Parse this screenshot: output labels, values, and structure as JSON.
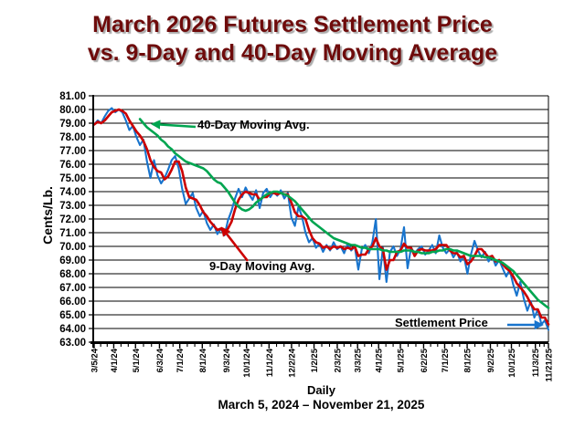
{
  "title": {
    "line1": "March 2026 Futures Settlement Price",
    "line2": "vs. 9-Day and 40-Day Moving Average",
    "color": "#6e0b0b"
  },
  "axes": {
    "y_label": "Cents/Lb.",
    "y_max": 81,
    "y_min": 63,
    "y_ticks": [
      "81.00",
      "80.00",
      "79.00",
      "78.00",
      "77.00",
      "76.00",
      "75.00",
      "74.00",
      "73.00",
      "72.00",
      "71.00",
      "70.00",
      "69.00",
      "68.00",
      "67.00",
      "66.00",
      "65.00",
      "64.00",
      "63.00"
    ],
    "x_label": "Daily",
    "x_sublabel": "March 5, 2024 – November 21, 2025",
    "x_ticks": [
      "3/5/24",
      "4/1/24",
      "5/1/24",
      "6/3/24",
      "7/1/24",
      "8/1/24",
      "9/3/24",
      "10/1/24",
      "11/1/24",
      "12/2/24",
      "1/2/25",
      "2/3/25",
      "3/3/25",
      "4/1/25",
      "5/1/25",
      "6/2/25",
      "7/1/25",
      "8/1/25",
      "9/2/25",
      "10/1/25",
      "11/3/25",
      "11/21/25"
    ]
  },
  "annotations": [
    {
      "id": "ma40",
      "text": "40-Day Moving Avg.",
      "color": "#00a550"
    },
    {
      "id": "ma9",
      "text": "9-Day Moving Avg.",
      "color": "#cc0000"
    },
    {
      "id": "settlement",
      "text": "Settlement Price",
      "color": "#1874cd"
    }
  ],
  "chart_data": {
    "type": "line",
    "title": "March 2026 Futures Settlement Price vs. 9-Day and 40-Day Moving Average",
    "xlabel": "Daily",
    "ylabel": "Cents/Lb.",
    "x_range": [
      "3/5/24",
      "11/21/25"
    ],
    "ylim": [
      63,
      81
    ],
    "grid": true,
    "legend": "in-plot text annotations with arrows",
    "series": [
      {
        "name": "Settlement Price",
        "id": "settlement",
        "color": "#1874cd",
        "values": [
          78.9,
          79.2,
          79.0,
          79.5,
          79.9,
          80.1,
          79.8,
          80.0,
          79.8,
          79.2,
          78.5,
          78.8,
          78.0,
          77.4,
          77.8,
          76.2,
          75.0,
          76.3,
          75.2,
          74.6,
          75.0,
          75.6,
          76.3,
          76.6,
          75.7,
          74.2,
          73.1,
          73.5,
          73.9,
          72.8,
          72.2,
          72.6,
          71.7,
          71.2,
          71.6,
          70.9,
          71.3,
          70.8,
          71.9,
          72.6,
          73.5,
          74.2,
          73.6,
          74.3,
          73.8,
          73.4,
          74.1,
          72.8,
          73.9,
          74.2,
          73.6,
          74.0,
          73.7,
          74.1,
          73.5,
          73.9,
          72.1,
          71.5,
          72.9,
          72.2,
          71.0,
          70.3,
          70.6,
          69.9,
          70.2,
          69.6,
          70.1,
          69.7,
          70.3,
          69.8,
          70.0,
          69.5,
          70.2,
          69.7,
          70.0,
          68.3,
          69.8,
          70.1,
          69.5,
          70.3,
          72.0,
          67.6,
          69.9,
          67.4,
          69.6,
          70.0,
          69.3,
          69.8,
          71.4,
          68.4,
          69.9,
          69.5,
          69.8,
          70.0,
          69.4,
          69.7,
          70.1,
          69.5,
          70.8,
          69.9,
          69.5,
          69.8,
          69.2,
          69.6,
          68.9,
          69.3,
          68.0,
          69.4,
          70.4,
          69.7,
          69.2,
          69.6,
          68.9,
          69.3,
          68.6,
          69.0,
          68.4,
          67.8,
          68.3,
          67.2,
          66.4,
          67.4,
          66.2,
          65.3,
          66.0,
          64.8,
          65.4,
          64.3,
          64.6,
          63.9
        ]
      },
      {
        "name": "9-Day Moving Avg.",
        "id": "ma9",
        "color": "#cc0000",
        "values": [
          78.9,
          79.1,
          79.0,
          79.2,
          79.5,
          79.8,
          79.9,
          80.0,
          79.9,
          79.7,
          79.2,
          78.8,
          78.4,
          78.1,
          77.7,
          77.1,
          76.3,
          75.8,
          75.5,
          75.4,
          74.9,
          75.1,
          75.6,
          76.2,
          76.2,
          75.5,
          74.3,
          73.6,
          73.5,
          73.4,
          73.0,
          72.5,
          72.2,
          71.8,
          71.5,
          71.2,
          71.3,
          71.0,
          71.3,
          71.8,
          72.7,
          73.4,
          73.8,
          74.0,
          73.9,
          73.8,
          73.8,
          73.4,
          73.6,
          73.6,
          73.9,
          73.9,
          73.8,
          73.9,
          73.8,
          73.8,
          73.2,
          72.5,
          72.2,
          72.2,
          72.0,
          71.2,
          70.6,
          70.3,
          70.2,
          69.9,
          70.0,
          69.8,
          70.0,
          69.9,
          70.0,
          69.8,
          69.9,
          69.8,
          70.0,
          69.3,
          69.4,
          69.4,
          69.8,
          70.0,
          70.6,
          70.0,
          69.8,
          68.3,
          69.0,
          69.0,
          69.6,
          69.7,
          70.2,
          69.9,
          69.9,
          69.3,
          69.7,
          69.8,
          69.7,
          69.7,
          69.7,
          69.8,
          70.1,
          70.1,
          70.1,
          69.7,
          69.5,
          69.5,
          69.2,
          69.3,
          68.7,
          68.9,
          69.3,
          69.8,
          69.8,
          69.5,
          69.2,
          69.3,
          68.9,
          69.0,
          68.7,
          68.4,
          68.2,
          67.8,
          67.3,
          67.0,
          66.7,
          66.3,
          65.8,
          65.4,
          65.4,
          64.8,
          64.8,
          64.3
        ]
      },
      {
        "name": "40-Day Moving Avg.",
        "id": "ma40",
        "color": "#00a550",
        "values": [
          null,
          null,
          null,
          null,
          null,
          null,
          null,
          null,
          null,
          null,
          null,
          null,
          null,
          79.3,
          79.0,
          78.7,
          78.5,
          78.3,
          78.1,
          77.8,
          77.6,
          77.3,
          77.1,
          76.8,
          76.6,
          76.4,
          76.2,
          76.1,
          76.0,
          75.9,
          75.8,
          75.7,
          75.5,
          75.2,
          74.9,
          74.7,
          74.6,
          74.3,
          74.0,
          73.6,
          73.2,
          72.9,
          72.7,
          72.6,
          72.7,
          72.9,
          73.2,
          73.4,
          73.6,
          73.8,
          73.9,
          74.0,
          74.0,
          73.9,
          73.8,
          73.7,
          73.5,
          73.3,
          73.0,
          72.7,
          72.4,
          72.1,
          71.8,
          71.6,
          71.4,
          71.2,
          71.0,
          70.8,
          70.6,
          70.5,
          70.4,
          70.3,
          70.2,
          70.1,
          70.1,
          70.0,
          69.9,
          69.9,
          69.8,
          69.8,
          69.8,
          69.8,
          69.7,
          69.7,
          69.6,
          69.6,
          69.6,
          69.6,
          69.7,
          69.7,
          69.7,
          69.6,
          69.6,
          69.5,
          69.5,
          69.5,
          69.6,
          69.6,
          69.7,
          69.7,
          69.8,
          69.8,
          69.7,
          69.7,
          69.6,
          69.5,
          69.4,
          69.3,
          69.3,
          69.3,
          69.3,
          69.2,
          69.2,
          69.1,
          69.0,
          68.9,
          68.8,
          68.6,
          68.4,
          68.2,
          67.9,
          67.6,
          67.3,
          67.0,
          66.7,
          66.4,
          66.1,
          65.9,
          65.7,
          65.5
        ]
      }
    ]
  }
}
